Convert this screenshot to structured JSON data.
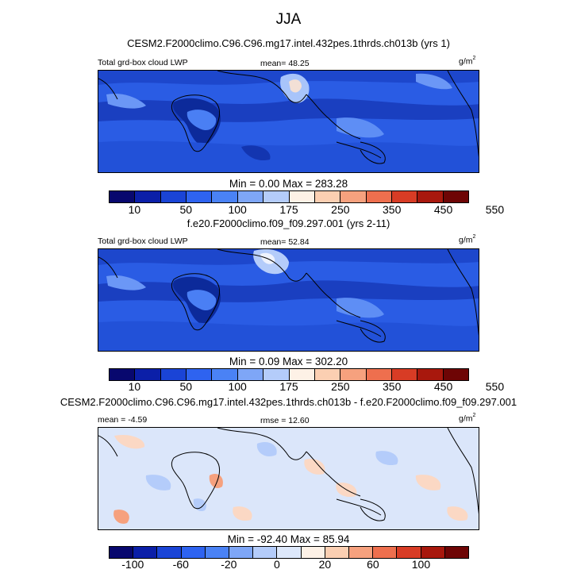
{
  "title": "JJA",
  "panels": [
    {
      "case": "CESM2.F2000climo.C96.C96.mg17.intel.432pes.1thrds.ch013b (yrs 1)",
      "left_label": "Total grd-box cloud LWP",
      "center_label": "mean=  48.25",
      "units_base": "g/m",
      "units_exp": "2",
      "minmax": "Min =   0.00 Max = 283.28",
      "colorbar_labels": [
        "10",
        "50",
        "100",
        "175",
        "250",
        "350",
        "450",
        "550"
      ]
    },
    {
      "case": "f.e20.F2000climo.f09_f09.297.001 (yrs 2-11)",
      "left_label": "Total grd-box cloud LWP",
      "center_label": "mean=  52.84",
      "units_base": "g/m",
      "units_exp": "2",
      "minmax": "Min =   0.09 Max = 302.20",
      "colorbar_labels": [
        "10",
        "50",
        "100",
        "175",
        "250",
        "350",
        "450",
        "550"
      ]
    },
    {
      "case": "CESM2.F2000climo.C96.C96.mg17.intel.432pes.1thrds.ch013b - f.e20.F2000climo.f09_f09.297.001",
      "left_label": "mean =  -4.59",
      "center_label": "rmse =  12.60",
      "units_base": "g/m",
      "units_exp": "2",
      "minmax": "Min = -92.40 Max = 85.94",
      "colorbar_labels": [
        "-100",
        "-60",
        "-20",
        "0",
        "20",
        "60",
        "100"
      ]
    }
  ],
  "colors": {
    "abs_scale": [
      "#08086e",
      "#0b1fa8",
      "#1a44d6",
      "#2e63f0",
      "#4a82f5",
      "#7ea6f7",
      "#b4ccfa",
      "#fdf1e6",
      "#fbcfb2",
      "#f6a17e",
      "#ee6f4e",
      "#d83c25",
      "#a8180d",
      "#6e0505"
    ],
    "diff_scale": [
      "#08086e",
      "#0b1fa8",
      "#1a44d6",
      "#2e63f0",
      "#4a82f5",
      "#7ea6f7",
      "#b4ccfa",
      "#dde8fb",
      "#fdf1e6",
      "#fbcfb2",
      "#f6a17e",
      "#ee6f4e",
      "#d83c25",
      "#a8180d",
      "#6e0505"
    ],
    "map_base": "#2a5ce4",
    "diff_base": "#dbe6fa"
  }
}
